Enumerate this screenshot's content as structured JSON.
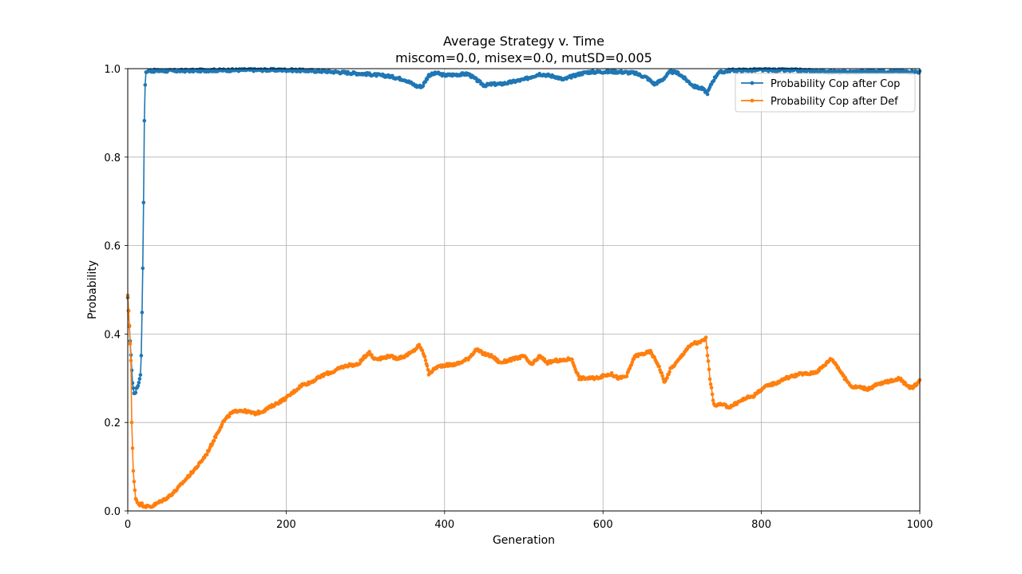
{
  "chart_data": {
    "type": "line",
    "title": "Average Strategy v. Time",
    "subtitle": "miscom=0.0, misex=0.0, mutSD=0.005",
    "xlabel": "Generation",
    "ylabel": "Probability",
    "xlim": [
      0,
      1000
    ],
    "ylim": [
      0.0,
      1.0
    ],
    "xticks": [
      0,
      200,
      400,
      600,
      800,
      1000
    ],
    "xtick_labels": [
      "0",
      "200",
      "400",
      "600",
      "800",
      "1000"
    ],
    "yticks": [
      0.0,
      0.2,
      0.4,
      0.6,
      0.8,
      1.0
    ],
    "ytick_labels": [
      "0.0",
      "0.2",
      "0.4",
      "0.6",
      "0.8",
      "1.0"
    ],
    "grid": true,
    "legend_position": "top-right",
    "series": [
      {
        "name": "Probability Cop after Cop",
        "color": "#1f77b4",
        "keypoints": [
          [
            0,
            0.48
          ],
          [
            2,
            0.42
          ],
          [
            4,
            0.35
          ],
          [
            6,
            0.29
          ],
          [
            8,
            0.265
          ],
          [
            10,
            0.27
          ],
          [
            12,
            0.28
          ],
          [
            14,
            0.29
          ],
          [
            16,
            0.31
          ],
          [
            17,
            0.35
          ],
          [
            18,
            0.45
          ],
          [
            19,
            0.55
          ],
          [
            20,
            0.7
          ],
          [
            21,
            0.88
          ],
          [
            22,
            0.965
          ],
          [
            23,
            0.99
          ],
          [
            25,
            0.995
          ],
          [
            60,
            0.995
          ],
          [
            100,
            0.996
          ],
          [
            150,
            0.997
          ],
          [
            200,
            0.997
          ],
          [
            250,
            0.994
          ],
          [
            300,
            0.988
          ],
          [
            330,
            0.983
          ],
          [
            350,
            0.975
          ],
          [
            365,
            0.96
          ],
          [
            372,
            0.96
          ],
          [
            380,
            0.985
          ],
          [
            390,
            0.99
          ],
          [
            400,
            0.985
          ],
          [
            430,
            0.988
          ],
          [
            440,
            0.975
          ],
          [
            450,
            0.962
          ],
          [
            460,
            0.965
          ],
          [
            470,
            0.965
          ],
          [
            480,
            0.968
          ],
          [
            490,
            0.972
          ],
          [
            500,
            0.975
          ],
          [
            510,
            0.982
          ],
          [
            520,
            0.988
          ],
          [
            530,
            0.985
          ],
          [
            540,
            0.982
          ],
          [
            550,
            0.975
          ],
          [
            560,
            0.982
          ],
          [
            570,
            0.988
          ],
          [
            580,
            0.992
          ],
          [
            600,
            0.993
          ],
          [
            620,
            0.993
          ],
          [
            640,
            0.99
          ],
          [
            655,
            0.98
          ],
          [
            665,
            0.965
          ],
          [
            675,
            0.975
          ],
          [
            685,
            0.993
          ],
          [
            695,
            0.99
          ],
          [
            705,
            0.975
          ],
          [
            715,
            0.96
          ],
          [
            725,
            0.955
          ],
          [
            732,
            0.945
          ],
          [
            738,
            0.97
          ],
          [
            745,
            0.99
          ],
          [
            760,
            0.996
          ],
          [
            800,
            0.997
          ],
          [
            850,
            0.996
          ],
          [
            900,
            0.992
          ],
          [
            950,
            0.994
          ],
          [
            1000,
            0.993
          ]
        ]
      },
      {
        "name": "Probability Cop after Def",
        "color": "#ff7f0e",
        "keypoints": [
          [
            0,
            0.485
          ],
          [
            2,
            0.42
          ],
          [
            4,
            0.34
          ],
          [
            5,
            0.2
          ],
          [
            6,
            0.14
          ],
          [
            7,
            0.09
          ],
          [
            8,
            0.065
          ],
          [
            10,
            0.03
          ],
          [
            12,
            0.02
          ],
          [
            15,
            0.015
          ],
          [
            18,
            0.015
          ],
          [
            20,
            0.012
          ],
          [
            25,
            0.01
          ],
          [
            30,
            0.01
          ],
          [
            35,
            0.015
          ],
          [
            40,
            0.02
          ],
          [
            50,
            0.03
          ],
          [
            60,
            0.045
          ],
          [
            70,
            0.065
          ],
          [
            80,
            0.085
          ],
          [
            90,
            0.105
          ],
          [
            100,
            0.13
          ],
          [
            110,
            0.165
          ],
          [
            120,
            0.2
          ],
          [
            130,
            0.22
          ],
          [
            140,
            0.228
          ],
          [
            150,
            0.225
          ],
          [
            160,
            0.22
          ],
          [
            170,
            0.225
          ],
          [
            180,
            0.235
          ],
          [
            190,
            0.245
          ],
          [
            200,
            0.255
          ],
          [
            210,
            0.27
          ],
          [
            220,
            0.285
          ],
          [
            230,
            0.29
          ],
          [
            240,
            0.3
          ],
          [
            250,
            0.31
          ],
          [
            260,
            0.315
          ],
          [
            270,
            0.325
          ],
          [
            280,
            0.33
          ],
          [
            290,
            0.33
          ],
          [
            300,
            0.35
          ],
          [
            305,
            0.36
          ],
          [
            310,
            0.345
          ],
          [
            320,
            0.345
          ],
          [
            330,
            0.35
          ],
          [
            340,
            0.345
          ],
          [
            350,
            0.35
          ],
          [
            360,
            0.36
          ],
          [
            368,
            0.375
          ],
          [
            375,
            0.35
          ],
          [
            380,
            0.31
          ],
          [
            390,
            0.325
          ],
          [
            400,
            0.33
          ],
          [
            410,
            0.33
          ],
          [
            420,
            0.335
          ],
          [
            430,
            0.345
          ],
          [
            440,
            0.365
          ],
          [
            450,
            0.355
          ],
          [
            460,
            0.35
          ],
          [
            470,
            0.335
          ],
          [
            480,
            0.34
          ],
          [
            490,
            0.345
          ],
          [
            500,
            0.35
          ],
          [
            510,
            0.33
          ],
          [
            520,
            0.35
          ],
          [
            530,
            0.335
          ],
          [
            540,
            0.34
          ],
          [
            550,
            0.34
          ],
          [
            560,
            0.345
          ],
          [
            570,
            0.3
          ],
          [
            580,
            0.3
          ],
          [
            590,
            0.3
          ],
          [
            600,
            0.305
          ],
          [
            610,
            0.31
          ],
          [
            620,
            0.3
          ],
          [
            630,
            0.305
          ],
          [
            640,
            0.35
          ],
          [
            650,
            0.355
          ],
          [
            660,
            0.36
          ],
          [
            670,
            0.33
          ],
          [
            678,
            0.29
          ],
          [
            685,
            0.32
          ],
          [
            695,
            0.34
          ],
          [
            705,
            0.365
          ],
          [
            715,
            0.38
          ],
          [
            722,
            0.38
          ],
          [
            730,
            0.39
          ],
          [
            735,
            0.3
          ],
          [
            740,
            0.24
          ],
          [
            750,
            0.24
          ],
          [
            760,
            0.235
          ],
          [
            770,
            0.245
          ],
          [
            780,
            0.255
          ],
          [
            790,
            0.26
          ],
          [
            800,
            0.275
          ],
          [
            810,
            0.285
          ],
          [
            820,
            0.29
          ],
          [
            830,
            0.3
          ],
          [
            840,
            0.305
          ],
          [
            850,
            0.31
          ],
          [
            860,
            0.31
          ],
          [
            870,
            0.315
          ],
          [
            880,
            0.33
          ],
          [
            888,
            0.345
          ],
          [
            895,
            0.33
          ],
          [
            905,
            0.3
          ],
          [
            915,
            0.28
          ],
          [
            925,
            0.28
          ],
          [
            935,
            0.275
          ],
          [
            945,
            0.285
          ],
          [
            955,
            0.29
          ],
          [
            965,
            0.295
          ],
          [
            975,
            0.3
          ],
          [
            985,
            0.28
          ],
          [
            992,
            0.28
          ],
          [
            1000,
            0.295
          ]
        ]
      }
    ]
  }
}
